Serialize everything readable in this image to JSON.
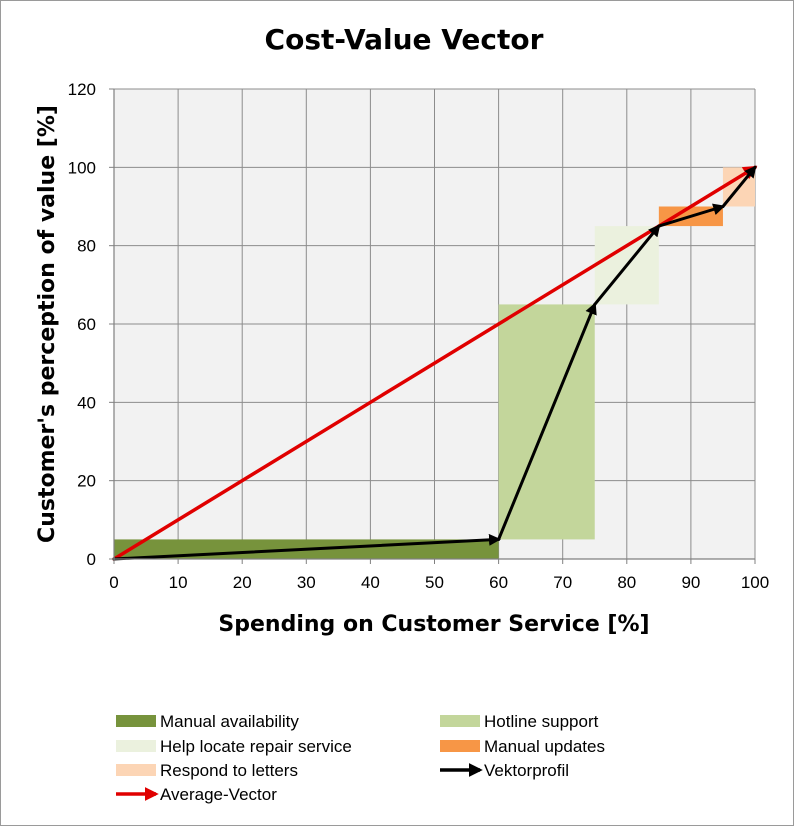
{
  "chart_data": {
    "type": "area",
    "title": "Cost-Value Vector",
    "xlabel": "Spending on Customer Service [%]",
    "ylabel": "Customer's perception of value [%]",
    "xlim": [
      0,
      100
    ],
    "ylim": [
      0,
      120
    ],
    "x_ticks": [
      "0",
      "10",
      "20",
      "30",
      "40",
      "50",
      "60",
      "70",
      "80",
      "90",
      "100"
    ],
    "y_ticks": [
      "0",
      "20",
      "40",
      "60",
      "80",
      "100",
      "120"
    ],
    "grid": true,
    "legend_position": "bottom",
    "blocks": [
      {
        "name": "Manual availability",
        "x": [
          0,
          60
        ],
        "y": [
          0,
          5
        ],
        "color": "#77933c"
      },
      {
        "name": "Hotline support",
        "x": [
          60,
          75
        ],
        "y": [
          5,
          65
        ],
        "color": "#c3d69b"
      },
      {
        "name": "Help locate repair service",
        "x": [
          75,
          85
        ],
        "y": [
          65,
          85
        ],
        "color": "#ebf1de"
      },
      {
        "name": "Manual updates",
        "x": [
          85,
          95
        ],
        "y": [
          85,
          90
        ],
        "color": "#f79646"
      },
      {
        "name": "Respond to letters",
        "x": [
          95,
          100
        ],
        "y": [
          90,
          100
        ],
        "color": "#fcd5b5"
      }
    ],
    "lines": [
      {
        "name": "Vektorprofil",
        "color": "#000000",
        "points": [
          [
            0,
            0
          ],
          [
            60,
            5
          ],
          [
            75,
            65
          ],
          [
            85,
            85
          ],
          [
            95,
            90
          ],
          [
            100,
            100
          ]
        ]
      },
      {
        "name": "Average-Vector",
        "color": "#e00000",
        "points": [
          [
            0,
            0
          ],
          [
            100,
            100
          ]
        ]
      }
    ],
    "legend": [
      {
        "label": "Manual availability",
        "kind": "box",
        "color": "#77933c"
      },
      {
        "label": "Hotline support",
        "kind": "box",
        "color": "#c3d69b"
      },
      {
        "label": "Help locate repair service",
        "kind": "box",
        "color": "#ebf1de"
      },
      {
        "label": "Manual updates",
        "kind": "box",
        "color": "#f79646"
      },
      {
        "label": "Respond to letters",
        "kind": "box",
        "color": "#fcd5b5"
      },
      {
        "label": "Vektorprofil",
        "kind": "arrow",
        "color": "#000000"
      },
      {
        "label": "Average-Vector",
        "kind": "arrow",
        "color": "#e00000"
      }
    ]
  }
}
